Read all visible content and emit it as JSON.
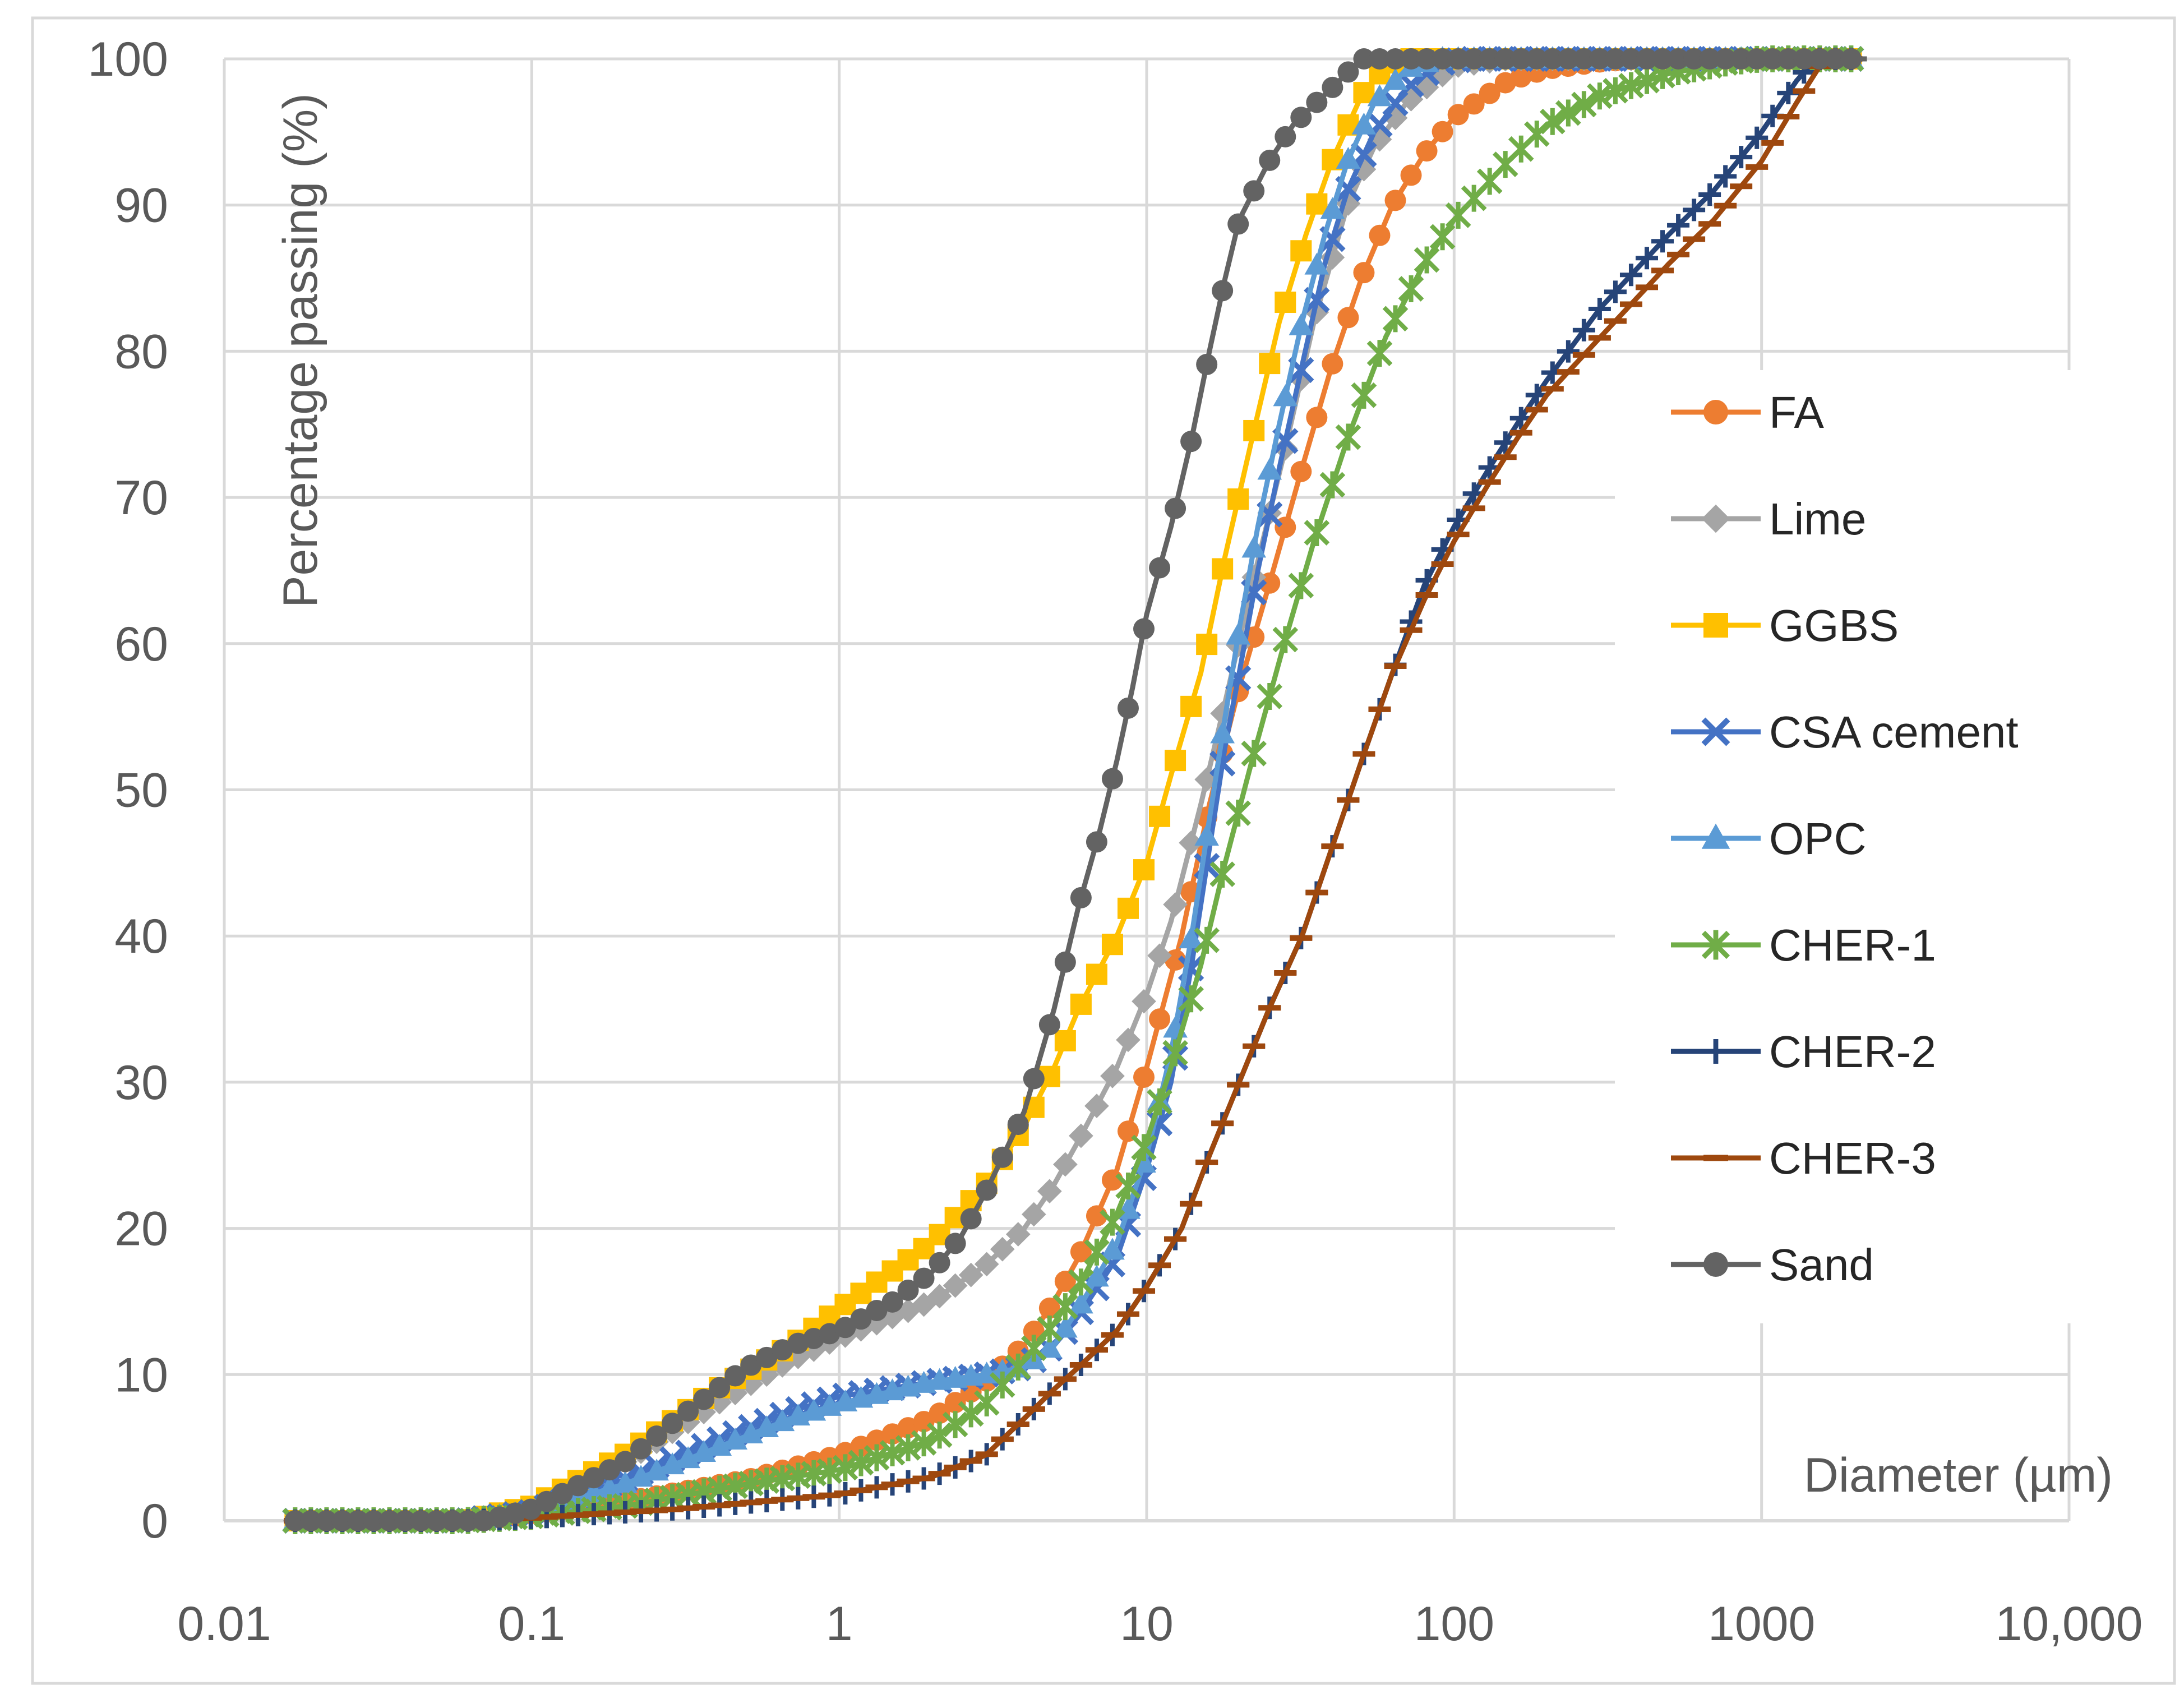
{
  "chart_data": {
    "type": "line",
    "xscale": "log",
    "xlabel": "Diameter (µm)",
    "ylabel": "Percentage passing (%)",
    "xlim": [
      0.01,
      10000
    ],
    "ylim": [
      0,
      100
    ],
    "grid": true,
    "legend_position": "right",
    "xticks": [
      {
        "value": 0.01,
        "label": "0.01"
      },
      {
        "value": 0.1,
        "label": "0.1"
      },
      {
        "value": 1,
        "label": "1"
      },
      {
        "value": 10,
        "label": "10"
      },
      {
        "value": 100,
        "label": "100"
      },
      {
        "value": 1000,
        "label": "1000"
      },
      {
        "value": 10000,
        "label": "10,000"
      }
    ],
    "yticks": [
      {
        "value": 0,
        "label": "0"
      },
      {
        "value": 10,
        "label": "10"
      },
      {
        "value": 20,
        "label": "20"
      },
      {
        "value": 30,
        "label": "30"
      },
      {
        "value": 40,
        "label": "40"
      },
      {
        "value": 50,
        "label": "50"
      },
      {
        "value": 60,
        "label": "60"
      },
      {
        "value": 70,
        "label": "70"
      },
      {
        "value": 80,
        "label": "80"
      },
      {
        "value": 90,
        "label": "90"
      },
      {
        "value": 100,
        "label": "100"
      }
    ],
    "series": [
      {
        "name": "FA",
        "color": "#ED7D31",
        "marker": "circle",
        "points": [
          [
            0.017,
            0
          ],
          [
            0.05,
            0
          ],
          [
            0.08,
            0.2
          ],
          [
            0.1,
            0.5
          ],
          [
            0.2,
            1.3
          ],
          [
            0.5,
            2.8
          ],
          [
            1,
            4.5
          ],
          [
            2,
            7
          ],
          [
            3,
            9.5
          ],
          [
            4,
            12
          ],
          [
            5,
            15
          ],
          [
            6,
            18
          ],
          [
            8,
            24
          ],
          [
            10,
            31
          ],
          [
            13,
            40
          ],
          [
            16,
            49
          ],
          [
            20,
            57
          ],
          [
            25,
            64
          ],
          [
            32,
            72
          ],
          [
            40,
            79
          ],
          [
            50,
            85
          ],
          [
            63,
            90
          ],
          [
            80,
            93.5
          ],
          [
            100,
            96
          ],
          [
            150,
            98.5
          ],
          [
            200,
            99.3
          ],
          [
            300,
            99.8
          ],
          [
            400,
            100
          ],
          [
            2200,
            100
          ]
        ]
      },
      {
        "name": "Lime",
        "color": "#A5A5A5",
        "marker": "diamond",
        "points": [
          [
            0.017,
            0
          ],
          [
            0.06,
            0
          ],
          [
            0.1,
            0.8
          ],
          [
            0.2,
            4
          ],
          [
            0.4,
            8
          ],
          [
            0.7,
            11
          ],
          [
            1,
            12.5
          ],
          [
            2,
            15
          ],
          [
            3,
            17.5
          ],
          [
            4,
            20
          ],
          [
            5,
            23
          ],
          [
            6,
            26
          ],
          [
            8,
            31
          ],
          [
            10,
            36
          ],
          [
            12,
            41
          ],
          [
            15,
            49
          ],
          [
            18,
            56
          ],
          [
            22,
            64
          ],
          [
            28,
            73
          ],
          [
            35,
            82
          ],
          [
            45,
            90
          ],
          [
            55,
            94
          ],
          [
            70,
            97
          ],
          [
            100,
            99.5
          ],
          [
            150,
            100
          ],
          [
            2200,
            100
          ]
        ]
      },
      {
        "name": "GGBS",
        "color": "#FFC000",
        "marker": "square",
        "points": [
          [
            0.017,
            0
          ],
          [
            0.06,
            0
          ],
          [
            0.1,
            1
          ],
          [
            0.2,
            4.5
          ],
          [
            0.4,
            9
          ],
          [
            0.7,
            12
          ],
          [
            1,
            14.5
          ],
          [
            2,
            19
          ],
          [
            3,
            23
          ],
          [
            4,
            27
          ],
          [
            5,
            31
          ],
          [
            6,
            35
          ],
          [
            8,
            40
          ],
          [
            10,
            45
          ],
          [
            12,
            51
          ],
          [
            15,
            58
          ],
          [
            18,
            66
          ],
          [
            22,
            74
          ],
          [
            27,
            82
          ],
          [
            33,
            88
          ],
          [
            40,
            93
          ],
          [
            50,
            97.5
          ],
          [
            60,
            99.5
          ],
          [
            70,
            100
          ],
          [
            2200,
            100
          ]
        ]
      },
      {
        "name": "CSA cement",
        "color": "#4472C4",
        "marker": "x",
        "points": [
          [
            0.017,
            0
          ],
          [
            0.06,
            0
          ],
          [
            0.1,
            0.6
          ],
          [
            0.2,
            2.8
          ],
          [
            0.4,
            5.5
          ],
          [
            0.7,
            7.5
          ],
          [
            1,
            8.5
          ],
          [
            2,
            9.5
          ],
          [
            3,
            10
          ],
          [
            4,
            10.5
          ],
          [
            5,
            12
          ],
          [
            6,
            14
          ],
          [
            8,
            18
          ],
          [
            10,
            24
          ],
          [
            12,
            30
          ],
          [
            14,
            38
          ],
          [
            16,
            46
          ],
          [
            18,
            53
          ],
          [
            20,
            58
          ],
          [
            23,
            65
          ],
          [
            27,
            72
          ],
          [
            32,
            79
          ],
          [
            38,
            86
          ],
          [
            45,
            91
          ],
          [
            55,
            95
          ],
          [
            70,
            98
          ],
          [
            90,
            99.7
          ],
          [
            110,
            100
          ],
          [
            2200,
            100
          ]
        ]
      },
      {
        "name": "OPC",
        "color": "#5B9BD5",
        "marker": "triangle",
        "points": [
          [
            0.017,
            0
          ],
          [
            0.06,
            0
          ],
          [
            0.1,
            0.6
          ],
          [
            0.2,
            2.5
          ],
          [
            0.4,
            5
          ],
          [
            0.7,
            7
          ],
          [
            1,
            8
          ],
          [
            2,
            9.5
          ],
          [
            3,
            10
          ],
          [
            4,
            10.5
          ],
          [
            5,
            12
          ],
          [
            6,
            14.5
          ],
          [
            8,
            19
          ],
          [
            10,
            25
          ],
          [
            12,
            32
          ],
          [
            14,
            40
          ],
          [
            16,
            48
          ],
          [
            18,
            55
          ],
          [
            20,
            61
          ],
          [
            23,
            68
          ],
          [
            27,
            75
          ],
          [
            32,
            82
          ],
          [
            38,
            88
          ],
          [
            45,
            93
          ],
          [
            55,
            97
          ],
          [
            70,
            99.3
          ],
          [
            90,
            100
          ],
          [
            2200,
            100
          ]
        ]
      },
      {
        "name": "CHER-1",
        "color": "#70AD47",
        "marker": "asterisk",
        "points": [
          [
            0.017,
            0
          ],
          [
            0.06,
            0
          ],
          [
            0.1,
            0.3
          ],
          [
            0.2,
            1
          ],
          [
            0.5,
            2.5
          ],
          [
            1,
            3.5
          ],
          [
            2,
            5.5
          ],
          [
            3,
            8
          ],
          [
            4,
            11
          ],
          [
            5,
            13.5
          ],
          [
            6,
            16
          ],
          [
            8,
            21
          ],
          [
            10,
            26
          ],
          [
            12,
            31
          ],
          [
            15,
            38
          ],
          [
            18,
            45
          ],
          [
            22,
            52
          ],
          [
            28,
            60
          ],
          [
            35,
            67
          ],
          [
            45,
            74
          ],
          [
            60,
            81
          ],
          [
            80,
            86
          ],
          [
            100,
            89
          ],
          [
            150,
            93
          ],
          [
            200,
            95.5
          ],
          [
            300,
            97.5
          ],
          [
            500,
            99
          ],
          [
            800,
            99.8
          ],
          [
            1000,
            100
          ],
          [
            2200,
            100
          ]
        ]
      },
      {
        "name": "CHER-2",
        "color": "#264478",
        "marker": "plus",
        "points": [
          [
            0.017,
            0
          ],
          [
            0.06,
            0
          ],
          [
            0.1,
            0.2
          ],
          [
            0.3,
            0.8
          ],
          [
            1,
            1.8
          ],
          [
            2,
            3
          ],
          [
            3,
            4.5
          ],
          [
            4,
            7
          ],
          [
            5,
            9
          ],
          [
            6,
            10.5
          ],
          [
            8,
            13
          ],
          [
            10,
            16
          ],
          [
            13,
            20
          ],
          [
            16,
            25
          ],
          [
            20,
            30
          ],
          [
            25,
            35
          ],
          [
            32,
            40
          ],
          [
            40,
            46
          ],
          [
            50,
            52
          ],
          [
            63,
            58
          ],
          [
            80,
            64
          ],
          [
            100,
            68
          ],
          [
            130,
            72
          ],
          [
            160,
            75
          ],
          [
            200,
            78
          ],
          [
            300,
            83
          ],
          [
            500,
            88
          ],
          [
            700,
            91
          ],
          [
            1000,
            95
          ],
          [
            1300,
            98.5
          ],
          [
            1500,
            100
          ],
          [
            2200,
            100
          ]
        ]
      },
      {
        "name": "CHER-3",
        "color": "#9E480E",
        "marker": "dash",
        "points": [
          [
            0.017,
            0
          ],
          [
            0.06,
            0
          ],
          [
            0.1,
            0.2
          ],
          [
            0.3,
            0.8
          ],
          [
            1,
            1.8
          ],
          [
            2,
            3
          ],
          [
            3,
            4.5
          ],
          [
            4,
            7
          ],
          [
            5,
            9
          ],
          [
            6,
            10.5
          ],
          [
            8,
            13
          ],
          [
            10,
            16
          ],
          [
            13,
            20
          ],
          [
            16,
            25
          ],
          [
            20,
            30
          ],
          [
            25,
            35
          ],
          [
            32,
            40
          ],
          [
            40,
            46
          ],
          [
            50,
            52
          ],
          [
            63,
            58
          ],
          [
            80,
            63
          ],
          [
            100,
            67
          ],
          [
            130,
            71
          ],
          [
            160,
            74
          ],
          [
            200,
            77
          ],
          [
            300,
            81
          ],
          [
            500,
            86
          ],
          [
            700,
            89
          ],
          [
            1000,
            93
          ],
          [
            1300,
            97
          ],
          [
            1600,
            100
          ],
          [
            2200,
            100
          ]
        ]
      },
      {
        "name": "Sand",
        "color": "#636363",
        "marker": "circle",
        "points": [
          [
            0.017,
            0
          ],
          [
            0.07,
            0
          ],
          [
            0.1,
            0.8
          ],
          [
            0.2,
            4
          ],
          [
            0.3,
            7
          ],
          [
            0.5,
            10.5
          ],
          [
            0.7,
            12
          ],
          [
            1,
            13
          ],
          [
            1.5,
            15
          ],
          [
            2,
            17
          ],
          [
            2.5,
            19.5
          ],
          [
            3,
            22.5
          ],
          [
            4,
            28
          ],
          [
            5,
            35
          ],
          [
            6,
            42
          ],
          [
            7,
            47
          ],
          [
            8,
            52
          ],
          [
            9,
            57
          ],
          [
            10,
            62
          ],
          [
            12,
            68
          ],
          [
            14,
            74
          ],
          [
            16,
            80
          ],
          [
            18,
            85
          ],
          [
            20,
            89
          ],
          [
            25,
            93
          ],
          [
            30,
            95.5
          ],
          [
            40,
            98
          ],
          [
            50,
            100
          ],
          [
            2200,
            100
          ]
        ]
      }
    ]
  }
}
